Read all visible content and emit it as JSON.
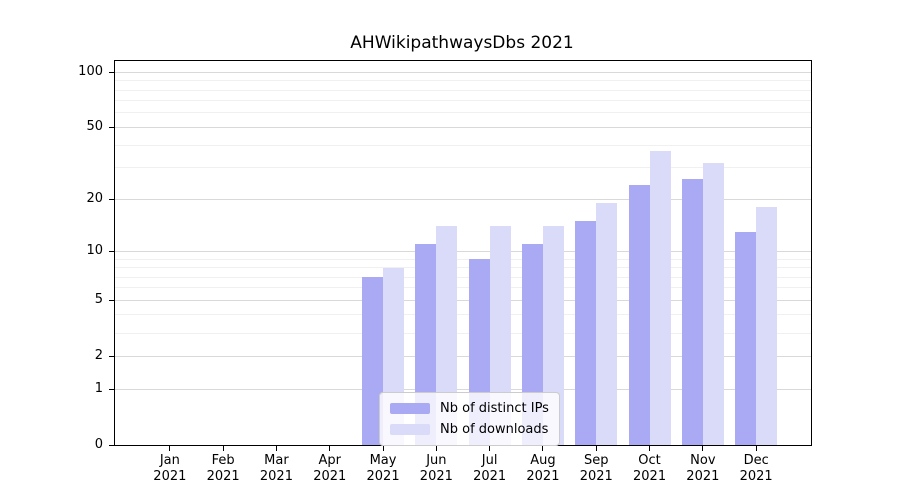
{
  "title": "AHWikipathwaysDbs 2021",
  "chart_data": {
    "type": "bar",
    "title": "AHWikipathwaysDbs 2021",
    "categories": [
      "Jan",
      "Feb",
      "Mar",
      "Apr",
      "May",
      "Jun",
      "Jul",
      "Aug",
      "Sep",
      "Oct",
      "Nov",
      "Dec"
    ],
    "year_label": "2021",
    "series": [
      {
        "name": "Nb of distinct IPs",
        "color": "#a9a9f4",
        "values": [
          0,
          0,
          0,
          0,
          7,
          11,
          9,
          11,
          15,
          24,
          26,
          13
        ]
      },
      {
        "name": "Nb of downloads",
        "color": "#dadaf9",
        "values": [
          0,
          0,
          0,
          0,
          8,
          14,
          14,
          14,
          19,
          37,
          32,
          18
        ]
      }
    ],
    "yscale": "log1p",
    "y_ticks": [
      0,
      1,
      2,
      5,
      10,
      20,
      50,
      100
    ],
    "y_minor_gridlines": [
      3,
      4,
      6,
      7,
      8,
      9,
      30,
      40,
      60,
      70,
      80,
      90
    ],
    "ylim": [
      0,
      115
    ],
    "xlabel": "",
    "ylabel": "",
    "grid": "horizontal",
    "legend_position": "lower center",
    "major_grid_color": "#d9d9d9",
    "minor_grid_color": "#f0f0f0"
  }
}
